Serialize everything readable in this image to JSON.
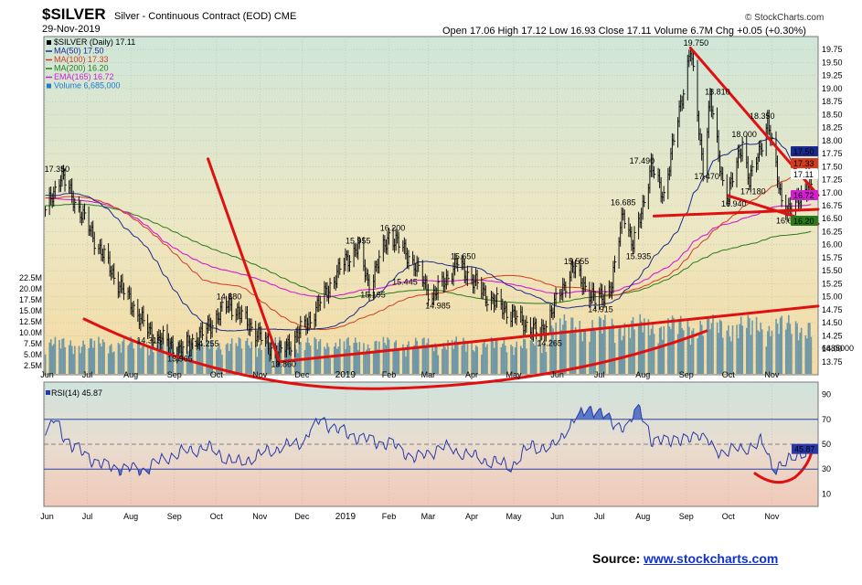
{
  "header": {
    "symbol": "$SILVER",
    "name": "Silver - Continuous Contract (EOD) CME",
    "date": "29-Nov-2019",
    "ohlc": "Open 17.06  High 17.12  Low 16.93  Close 17.11  Volume 6.7M  Chg +0.05 (+0.30%)",
    "brand": "© StockCharts.com"
  },
  "legend": [
    {
      "text": "$SILVER (Daily) 17.11",
      "color": "#000000"
    },
    {
      "text": "MA(50) 17.50",
      "color": "#1a2a8c"
    },
    {
      "text": "MA(100) 17.33",
      "color": "#d23c1e"
    },
    {
      "text": "MA(200) 16.20",
      "color": "#2a7a1a"
    },
    {
      "text": "EMA(165) 16.72",
      "color": "#d21ed2"
    },
    {
      "text": "Volume 6,685,000",
      "color": "#1e7ad2"
    }
  ],
  "rsi_label": "RSI(14) 45.87",
  "source": {
    "prefix": "Source: ",
    "link": "www.stockcharts.com"
  },
  "chart_data": {
    "type": "line",
    "title": "$SILVER Silver - Continuous Contract (EOD) CME",
    "price_ylim": [
      13.5,
      20.0
    ],
    "price_ticks": [
      "19.75",
      "19.50",
      "19.25",
      "19.00",
      "18.75",
      "18.50",
      "18.25",
      "18.00",
      "17.75",
      "17.50",
      "17.25",
      "17.00",
      "16.75",
      "16.50",
      "16.25",
      "16.00",
      "15.75",
      "15.50",
      "15.25",
      "15.00",
      "14.75",
      "14.50",
      "14.25",
      "14.00",
      "13.75"
    ],
    "volume_ticks": [
      "22.5M",
      "20.0M",
      "17.5M",
      "15.0M",
      "12.5M",
      "10.0M",
      "7.5M",
      "5.0M",
      "2.5M"
    ],
    "volume_last_label": "6685000",
    "x_labels": [
      "Jun",
      "Jul",
      "Aug",
      "Sep",
      "Oct",
      "Nov",
      "Dec",
      "2019",
      "Feb",
      "Mar",
      "Apr",
      "May",
      "Jun",
      "Jul",
      "Aug",
      "Sep",
      "Oct",
      "Nov"
    ],
    "price_keypoints": [
      {
        "x": "2018-06-01",
        "y": 16.6
      },
      {
        "x": "2018-06-12",
        "y": 17.35
      },
      {
        "x": "2018-07-20",
        "y": 15.4
      },
      {
        "x": "2018-08-14",
        "y": 14.32
      },
      {
        "x": "2018-09-05",
        "y": 13.97
      },
      {
        "x": "2018-09-20",
        "y": 14.26
      },
      {
        "x": "2018-10-10",
        "y": 14.88
      },
      {
        "x": "2018-11-14",
        "y": 13.86
      },
      {
        "x": "2018-12-05",
        "y": 14.5
      },
      {
        "x": "2019-01-01",
        "y": 15.7
      },
      {
        "x": "2019-01-10",
        "y": 15.96
      },
      {
        "x": "2019-01-18",
        "y": 15.2
      },
      {
        "x": "2019-02-01",
        "y": 16.2
      },
      {
        "x": "2019-02-15",
        "y": 15.8
      },
      {
        "x": "2019-03-04",
        "y": 14.99
      },
      {
        "x": "2019-03-22",
        "y": 15.65
      },
      {
        "x": "2019-04-12",
        "y": 15.0
      },
      {
        "x": "2019-05-20",
        "y": 14.27
      },
      {
        "x": "2019-06-12",
        "y": 15.56
      },
      {
        "x": "2019-06-28",
        "y": 14.92
      },
      {
        "x": "2019-07-10",
        "y": 15.2
      },
      {
        "x": "2019-07-18",
        "y": 16.69
      },
      {
        "x": "2019-07-25",
        "y": 15.94
      },
      {
        "x": "2019-08-07",
        "y": 17.49
      },
      {
        "x": "2019-08-16",
        "y": 16.95
      },
      {
        "x": "2019-09-04",
        "y": 19.75
      },
      {
        "x": "2019-09-13",
        "y": 17.47
      },
      {
        "x": "2019-09-18",
        "y": 18.81
      },
      {
        "x": "2019-09-27",
        "y": 17.2
      },
      {
        "x": "2019-10-01",
        "y": 16.94
      },
      {
        "x": "2019-10-11",
        "y": 18.0
      },
      {
        "x": "2019-10-16",
        "y": 17.18
      },
      {
        "x": "2019-10-29",
        "y": 18.35
      },
      {
        "x": "2019-11-08",
        "y": 16.88
      },
      {
        "x": "2019-11-13",
        "y": 16.62
      },
      {
        "x": "2019-11-22",
        "y": 17.0
      },
      {
        "x": "2019-11-29",
        "y": 17.11
      }
    ],
    "annotations": [
      "17.350",
      "14.315",
      "13.965",
      "14.255",
      "14.880",
      "13.860",
      "15.955",
      "15.195",
      "16.200",
      "15.445",
      "14.985",
      "15.650",
      "14.265",
      "15.555",
      "14.915",
      "16.685",
      "15.935",
      "17.490",
      "19.750",
      "18.810",
      "17.470",
      "18.000",
      "16.940",
      "17.180",
      "18.350",
      "16.615"
    ],
    "right_value_labels": [
      {
        "text": "17.50",
        "color": "#1a2a8c",
        "value": 17.5
      },
      {
        "text": "17.33",
        "color": "#d23c1e",
        "value": 17.33
      },
      {
        "text": "17.11",
        "color": "#000000",
        "value": 17.11
      },
      {
        "text": "16.72",
        "color": "#d21ed2",
        "value": 16.72
      },
      {
        "text": "16.20",
        "color": "#2a7a1a",
        "value": 16.2
      }
    ],
    "rsi": {
      "ylim": [
        0,
        100
      ],
      "ticks": [
        "90",
        "70",
        "50",
        "30",
        "10"
      ],
      "upper": 70,
      "lower": 30,
      "last": "45.87",
      "keypoints": [
        [
          0,
          57
        ],
        [
          0.01,
          70
        ],
        [
          0.04,
          48
        ],
        [
          0.09,
          32
        ],
        [
          0.15,
          29
        ],
        [
          0.2,
          42
        ],
        [
          0.25,
          48
        ],
        [
          0.3,
          35
        ],
        [
          0.35,
          45
        ],
        [
          0.4,
          52
        ],
        [
          0.43,
          70
        ],
        [
          0.46,
          60
        ],
        [
          0.51,
          52
        ],
        [
          0.54,
          50
        ],
        [
          0.58,
          38
        ],
        [
          0.62,
          48
        ],
        [
          0.66,
          42
        ],
        [
          0.69,
          37
        ],
        [
          0.73,
          33
        ],
        [
          0.76,
          50
        ],
        [
          0.79,
          46
        ],
        [
          0.82,
          65
        ],
        [
          0.85,
          80
        ],
        [
          0.88,
          70
        ],
        [
          0.91,
          62
        ],
        [
          0.93,
          82
        ],
        [
          0.95,
          48
        ],
        [
          0.97,
          55
        ],
        [
          0.985,
          54
        ],
        [
          0.995,
          50
        ],
        [
          1.02,
          60
        ],
        [
          1.05,
          44
        ],
        [
          1.09,
          46
        ],
        [
          1.12,
          52
        ],
        [
          1.14,
          32
        ],
        [
          1.16,
          35
        ],
        [
          1.18,
          44
        ],
        [
          1.2,
          46
        ]
      ]
    }
  }
}
